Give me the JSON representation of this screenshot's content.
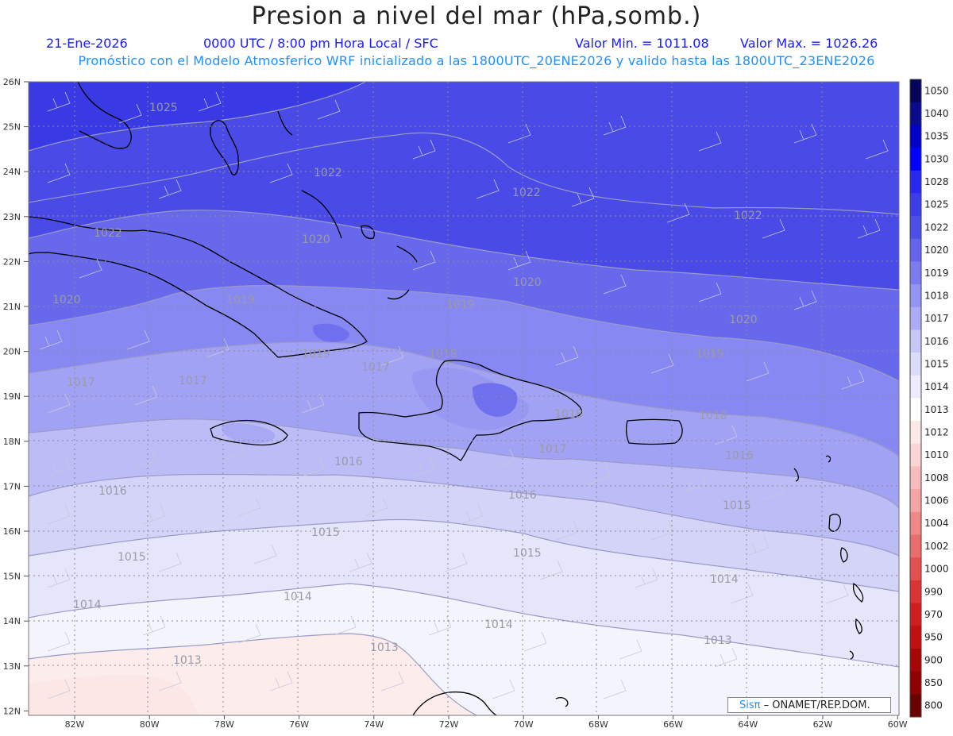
{
  "title": "Presion a nivel del mar (hPa,somb.)",
  "date": "21-Ene-2026",
  "time_label": "0000 UTC / 8:00 pm Hora Local / SFC",
  "min_label": "Valor Min. = 1011.08",
  "max_label": "Valor Max. = 1026.26",
  "subtitle": "Pronóstico con el Modelo Atmosferico WRF inicializado a las 1800UTC_20ENE2026 y valido hasta las  1800UTC_23ENE2026",
  "credit_brand": "Sisπ",
  "credit_rest": " – ONAMET/REP.DOM.",
  "lat_labels": [
    "26N",
    "25N",
    "24N",
    "23N",
    "22N",
    "21N",
    "20N",
    "19N",
    "18N",
    "17N",
    "16N",
    "15N",
    "14N",
    "13N",
    "12N"
  ],
  "lon_labels": [
    "82W",
    "80W",
    "78W",
    "76W",
    "74W",
    "72W",
    "70W",
    "68W",
    "66W",
    "64W",
    "62W",
    "60W"
  ],
  "colorbar": {
    "labels": [
      "1050",
      "1040",
      "1035",
      "1030",
      "1028",
      "1025",
      "1022",
      "1020",
      "1019",
      "1018",
      "1017",
      "1016",
      "1015",
      "1014",
      "1013",
      "1012",
      "1010",
      "1008",
      "1006",
      "1004",
      "1002",
      "1000",
      "990",
      "970",
      "950",
      "900",
      "850",
      "800"
    ],
    "colors": [
      "#05055a",
      "#0a0a8c",
      "#0000c8",
      "#0000ff",
      "#2828f0",
      "#3c3ce8",
      "#4e4ee8",
      "#6464ec",
      "#7c7cf0",
      "#9494f4",
      "#acacf6",
      "#c8c8f8",
      "#dcdcfa",
      "#ececfc",
      "#ffffff",
      "#fde8e8",
      "#fbd4d4",
      "#f8bcbc",
      "#f4a4a4",
      "#f08888",
      "#ea6c6c",
      "#e45050",
      "#dc3434",
      "#d01e1e",
      "#c01010",
      "#a80606",
      "#900000",
      "#6a0000"
    ]
  },
  "contour_labels": [
    "1025",
    "1022",
    "1022",
    "1022",
    "1022",
    "1020",
    "1020",
    "1020",
    "1020",
    "1019",
    "1019",
    "1019",
    "1019",
    "1018",
    "1018",
    "1018",
    "1017",
    "1017",
    "1017",
    "1017",
    "1016",
    "1016",
    "1016",
    "1016",
    "1015",
    "1015",
    "1015",
    "1015",
    "1014",
    "1014",
    "1014",
    "1014",
    "1013",
    "1013"
  ]
}
